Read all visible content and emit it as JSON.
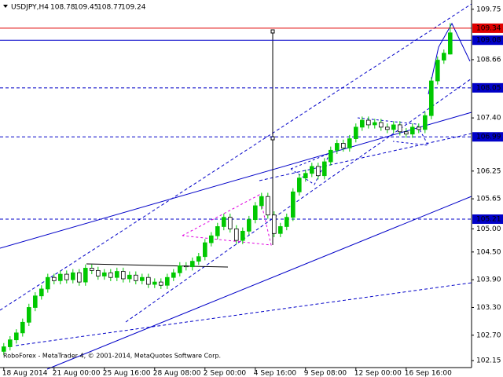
{
  "chart_data": {
    "type": "candlestick",
    "title": "USDJPY,H4",
    "footer": "RoboForex - MetaTrader 4, © 2001-2014, MetaQuotes Software Corp.",
    "open": [
      102.35,
      102.45,
      102.6,
      102.75,
      102.98,
      103.3,
      103.55,
      103.7,
      103.95,
      103.88,
      104.02,
      103.9,
      104.05,
      103.85,
      104.15,
      104.1,
      103.98,
      104.05,
      103.95,
      104.08,
      103.92,
      104.0,
      103.88,
      103.95,
      103.8,
      103.85,
      103.78,
      103.95,
      104.05,
      104.2,
      104.18,
      104.3,
      104.4,
      104.7,
      104.85,
      105.05,
      105.25,
      105.0,
      104.75,
      104.95,
      105.2,
      105.5,
      105.7,
      105.3,
      104.9,
      105.05,
      105.25,
      105.8,
      106.1,
      106.2,
      106.35,
      106.15,
      106.45,
      106.7,
      106.85,
      106.75,
      106.95,
      107.2,
      107.35,
      107.25,
      107.3,
      107.2,
      107.15,
      107.25,
      107.1,
      107.05,
      107.2,
      107.15,
      107.45,
      108.2,
      108.65,
      108.78
    ],
    "high": [
      102.53,
      102.68,
      102.83,
      103.06,
      103.38,
      103.63,
      103.78,
      104.03,
      104.03,
      104.1,
      104.1,
      104.13,
      104.13,
      104.23,
      104.23,
      104.18,
      104.13,
      104.13,
      104.16,
      104.16,
      104.08,
      104.08,
      104.03,
      104.03,
      103.93,
      103.93,
      104.03,
      104.13,
      104.28,
      104.28,
      104.38,
      104.48,
      104.78,
      104.93,
      105.13,
      105.33,
      105.33,
      105.08,
      105.03,
      105.28,
      105.58,
      105.78,
      105.78,
      105.38,
      105.13,
      105.33,
      105.88,
      106.18,
      106.28,
      106.43,
      106.43,
      106.53,
      106.78,
      106.93,
      106.93,
      107.03,
      107.28,
      107.43,
      107.43,
      107.38,
      107.38,
      107.28,
      107.33,
      107.33,
      107.18,
      107.28,
      107.28,
      107.53,
      108.28,
      108.73,
      108.88,
      109.45
    ],
    "low": [
      102.27,
      102.37,
      102.52,
      102.67,
      102.9,
      103.22,
      103.47,
      103.62,
      103.8,
      103.8,
      103.82,
      103.82,
      103.77,
      103.77,
      104.02,
      103.9,
      103.9,
      103.87,
      103.87,
      103.84,
      103.84,
      103.8,
      103.8,
      103.72,
      103.72,
      103.7,
      103.7,
      103.87,
      103.97,
      104.1,
      104.1,
      104.22,
      104.32,
      104.62,
      104.77,
      104.97,
      104.92,
      104.67,
      104.67,
      104.87,
      105.12,
      105.42,
      105.22,
      104.82,
      104.82,
      104.97,
      105.17,
      105.72,
      106.02,
      106.12,
      106.07,
      106.07,
      106.37,
      106.62,
      106.67,
      106.67,
      106.87,
      107.12,
      107.17,
      107.17,
      107.12,
      107.07,
      107.07,
      107.02,
      106.97,
      106.97,
      107.07,
      107.07,
      107.37,
      108.12,
      108.57,
      108.77
    ],
    "close": [
      102.45,
      102.6,
      102.75,
      102.98,
      103.3,
      103.55,
      103.7,
      103.95,
      103.88,
      104.02,
      103.9,
      104.05,
      103.85,
      104.15,
      104.1,
      103.98,
      104.05,
      103.95,
      104.08,
      103.92,
      104.0,
      103.88,
      103.95,
      103.8,
      103.85,
      103.78,
      103.95,
      104.05,
      104.2,
      104.18,
      104.3,
      104.4,
      104.7,
      104.85,
      105.05,
      105.25,
      105.0,
      104.75,
      104.95,
      105.2,
      105.5,
      105.7,
      105.3,
      104.9,
      105.05,
      105.25,
      105.8,
      106.1,
      106.2,
      106.35,
      106.15,
      106.45,
      106.7,
      106.85,
      106.75,
      106.95,
      107.2,
      107.35,
      107.25,
      107.3,
      107.2,
      107.15,
      107.25,
      107.1,
      107.05,
      107.2,
      107.15,
      107.45,
      108.2,
      108.65,
      108.8,
      109.24
    ],
    "up_color": "#00c800",
    "down_color": "#000000",
    "xlim": [
      -0.6,
      74.4
    ],
    "xticks": [
      {
        "value": 0,
        "label": "18 Aug 2014"
      },
      {
        "value": 8,
        "label": "21 Aug 00:00"
      },
      {
        "value": 16,
        "label": "25 Aug 16:00"
      },
      {
        "value": 24,
        "label": "28 Aug 08:00"
      },
      {
        "value": 32,
        "label": "2 Sep 00:00"
      },
      {
        "value": 40,
        "label": "4 Sep 16:00"
      },
      {
        "value": 48,
        "label": "9 Sep 08:00"
      },
      {
        "value": 56,
        "label": "12 Sep 00:00"
      },
      {
        "value": 64,
        "label": "16 Sep 16:00"
      }
    ],
    "ylim": [
      102.0,
      109.95
    ],
    "yticks": [
      109.75,
      108.66,
      {
        "value": 107.4,
        "label": "107.40"
      },
      106.25,
      105.65,
      {
        "value": 105,
        "label": "105.00"
      },
      {
        "value": 104.5,
        "label": "104.50"
      },
      {
        "value": 103.9,
        "label": "103.90"
      },
      {
        "value": 103.3,
        "label": "103.30"
      },
      {
        "value": 102.7,
        "label": "102.70"
      },
      102.15
    ],
    "levels": [
      {
        "value": 109.34,
        "color": "#e00000",
        "dash": false
      },
      {
        "value": 109.08,
        "color": "#0000c8",
        "dash": false
      },
      {
        "value": 108.05,
        "color": "#0000c8",
        "dash": true
      },
      {
        "value": 106.99,
        "color": "#0000c8",
        "dash": true
      },
      {
        "value": 105.21,
        "color": "#0000c8",
        "dash": true
      }
    ]
  }
}
